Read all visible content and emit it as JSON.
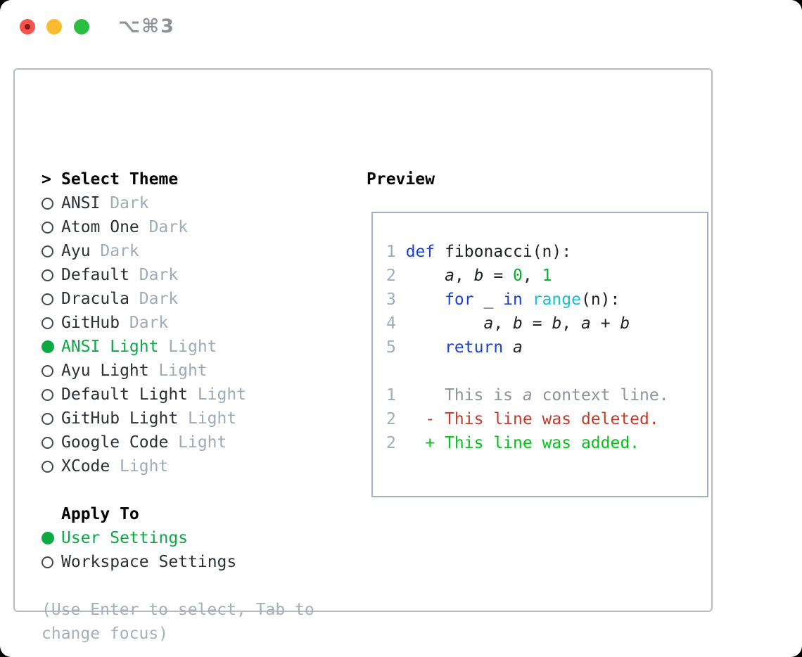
{
  "window": {
    "title": "⌥⌘3"
  },
  "theme_picker": {
    "prompt": ">",
    "title": "Select Theme",
    "items": [
      {
        "name": "ANSI",
        "variant": "Dark",
        "selected": false
      },
      {
        "name": "Atom One",
        "variant": "Dark",
        "selected": false
      },
      {
        "name": "Ayu",
        "variant": "Dark",
        "selected": false
      },
      {
        "name": "Default",
        "variant": "Dark",
        "selected": false
      },
      {
        "name": "Dracula",
        "variant": "Dark",
        "selected": false
      },
      {
        "name": "GitHub",
        "variant": "Dark",
        "selected": false
      },
      {
        "name": "ANSI Light",
        "variant": "Light",
        "selected": true
      },
      {
        "name": "Ayu Light",
        "variant": "Light",
        "selected": false
      },
      {
        "name": "Default Light",
        "variant": "Light",
        "selected": false
      },
      {
        "name": "GitHub Light",
        "variant": "Light",
        "selected": false
      },
      {
        "name": "Google Code",
        "variant": "Light",
        "selected": false
      },
      {
        "name": "XCode",
        "variant": "Light",
        "selected": false
      }
    ]
  },
  "apply_to": {
    "title": "Apply To",
    "items": [
      {
        "label": "User Settings",
        "selected": true
      },
      {
        "label": "Workspace Settings",
        "selected": false
      }
    ]
  },
  "help": {
    "lines": [
      "(Use Enter to select, Tab to",
      "change focus)"
    ]
  },
  "preview": {
    "title": "Preview",
    "code_lines": [
      {
        "num": "1",
        "segments": [
          {
            "t": "def",
            "c": "kw"
          },
          {
            "t": " fibonacci(n):",
            "c": "plain"
          }
        ]
      },
      {
        "num": "2",
        "segments": [
          {
            "t": "    ",
            "c": "plain"
          },
          {
            "t": "a",
            "c": "var"
          },
          {
            "t": ", ",
            "c": "plain"
          },
          {
            "t": "b",
            "c": "var"
          },
          {
            "t": " = ",
            "c": "plain"
          },
          {
            "t": "0",
            "c": "num"
          },
          {
            "t": ", ",
            "c": "plain"
          },
          {
            "t": "1",
            "c": "num"
          }
        ]
      },
      {
        "num": "3",
        "segments": [
          {
            "t": "    ",
            "c": "plain"
          },
          {
            "t": "for",
            "c": "kw"
          },
          {
            "t": " _ ",
            "c": "plain"
          },
          {
            "t": "in",
            "c": "kw"
          },
          {
            "t": " ",
            "c": "plain"
          },
          {
            "t": "range",
            "c": "bi"
          },
          {
            "t": "(n):",
            "c": "plain"
          }
        ]
      },
      {
        "num": "4",
        "segments": [
          {
            "t": "        ",
            "c": "plain"
          },
          {
            "t": "a",
            "c": "var"
          },
          {
            "t": ", ",
            "c": "plain"
          },
          {
            "t": "b",
            "c": "var"
          },
          {
            "t": " = ",
            "c": "plain"
          },
          {
            "t": "b",
            "c": "var"
          },
          {
            "t": ", ",
            "c": "plain"
          },
          {
            "t": "a",
            "c": "var"
          },
          {
            "t": " + ",
            "c": "plain"
          },
          {
            "t": "b",
            "c": "var"
          }
        ]
      },
      {
        "num": "5",
        "segments": [
          {
            "t": "    ",
            "c": "plain"
          },
          {
            "t": "return",
            "c": "kw"
          },
          {
            "t": " ",
            "c": "plain"
          },
          {
            "t": "a",
            "c": "var"
          }
        ]
      },
      {
        "num": "",
        "segments": []
      },
      {
        "num": "1",
        "segments": [
          {
            "t": "    This is ",
            "c": "ctx"
          },
          {
            "t": "a",
            "c": "ctx-var"
          },
          {
            "t": " context line.",
            "c": "ctx"
          }
        ]
      },
      {
        "num": "2",
        "segments": [
          {
            "t": "  ",
            "c": "plain"
          },
          {
            "t": "- This line was deleted.",
            "c": "del"
          }
        ]
      },
      {
        "num": "2",
        "segments": [
          {
            "t": "  ",
            "c": "plain"
          },
          {
            "t": "+ This line was added.",
            "c": "add"
          }
        ]
      }
    ]
  },
  "palette": {
    "selected_green": "#0ca843",
    "added_green": "#00c414",
    "deleted_red": "#c23b2a",
    "keyword_blue": "#1b40d8",
    "builtin_cyan": "#16bfd1",
    "number_green": "#00b228",
    "muted_gray": "#a0aab6",
    "context_gray": "#8b929b",
    "line_number_gray": "#9fabbd",
    "panel_border_gray": "#b5bbc4",
    "traffic_red": "#f4544d",
    "traffic_yellow": "#f9bb2d",
    "traffic_green": "#2cbe40"
  }
}
